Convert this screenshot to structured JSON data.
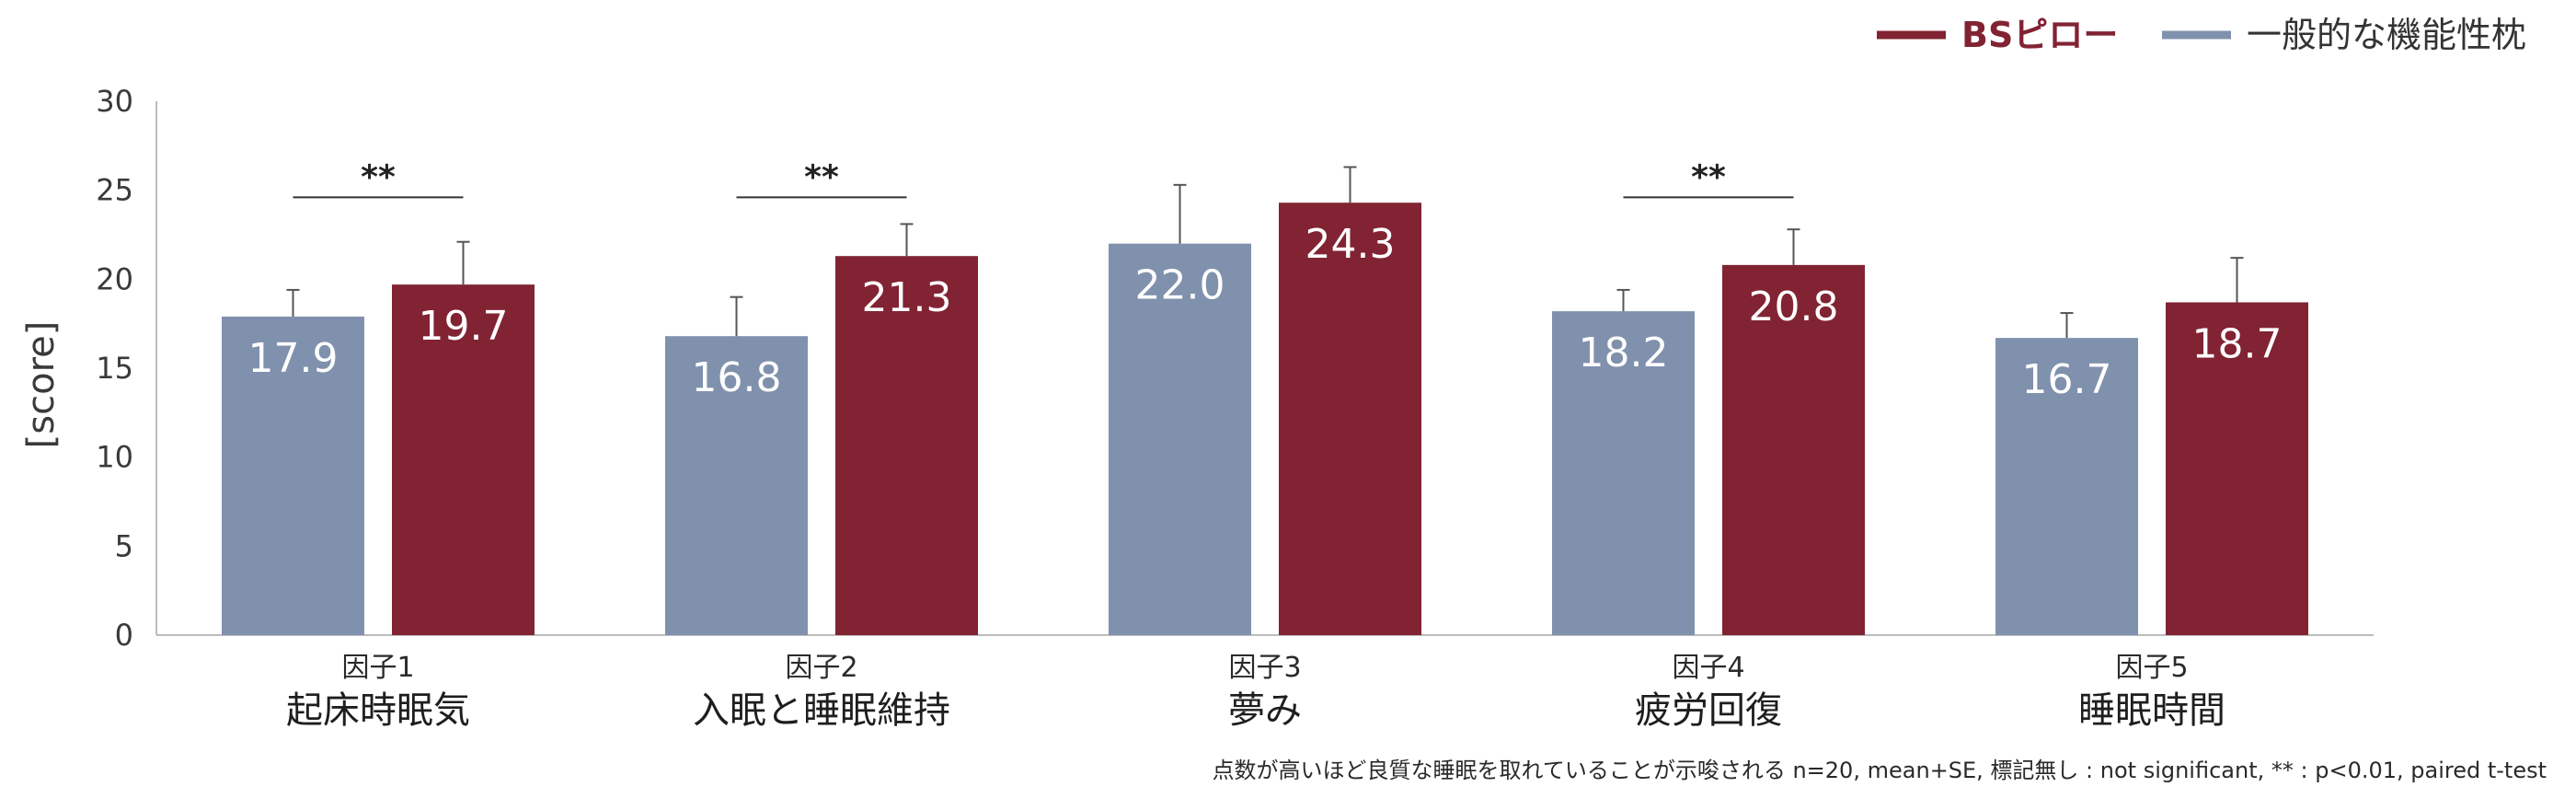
{
  "chart_data": {
    "type": "bar",
    "ylabel": "[score]",
    "ylim": [
      0,
      30
    ],
    "yticks": [
      0,
      5,
      10,
      15,
      20,
      25,
      30
    ],
    "categories": [
      {
        "factor": "因子1",
        "label": "起床時眠気"
      },
      {
        "factor": "因子2",
        "label": "入眠と睡眠維持"
      },
      {
        "factor": "因子3",
        "label": "夢み"
      },
      {
        "factor": "因子4",
        "label": "疲労回復"
      },
      {
        "factor": "因子5",
        "label": "睡眠時間"
      }
    ],
    "series": [
      {
        "name": "一般的な機能性枕",
        "color": "#8091ad",
        "values": [
          17.9,
          16.8,
          22.0,
          18.2,
          16.7
        ],
        "value_labels": [
          "17.9",
          "16.8",
          "22.0",
          "18.2",
          "16.7"
        ],
        "errors": [
          1.5,
          2.2,
          3.3,
          1.2,
          1.4
        ]
      },
      {
        "name": "BSピロー",
        "color": "#812333",
        "values": [
          19.7,
          21.3,
          24.3,
          20.8,
          18.7
        ],
        "value_labels": [
          "19.7",
          "21.3",
          "24.3",
          "20.8",
          "18.7"
        ],
        "errors": [
          2.4,
          1.8,
          2.0,
          2.0,
          2.5
        ]
      }
    ],
    "significance": [
      {
        "category_index": 0,
        "label": "**"
      },
      {
        "category_index": 1,
        "label": "**"
      },
      {
        "category_index": 3,
        "label": "**"
      }
    ],
    "legend": {
      "placement": "top-right",
      "order": [
        1,
        0
      ]
    },
    "footnote": "点数が高いほど良質な睡眠を取れていることが示唆される n=20, mean+SE, 標記無し : not significant, ** : p<0.01, paired t-test",
    "grid": false
  }
}
